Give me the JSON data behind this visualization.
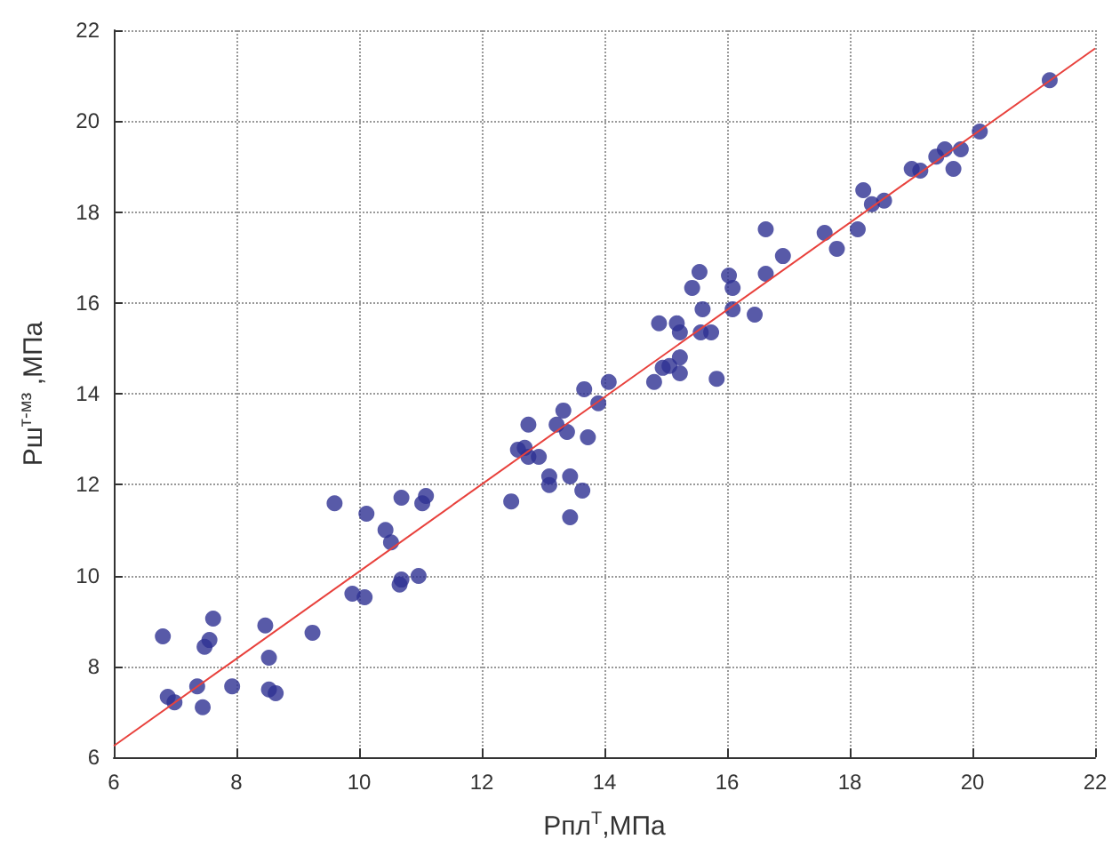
{
  "chart_data": {
    "type": "scatter",
    "xlabel": "Рпл$^{Т}$,МПа",
    "ylabel": "Рш$^{т-мз}$ ,МПа",
    "xlim": [
      6,
      22
    ],
    "xticks": [
      6,
      8,
      10,
      12,
      14,
      16,
      18,
      20,
      22
    ],
    "ylim": [
      6,
      22
    ],
    "yticks": [
      6,
      8,
      10,
      12,
      14,
      16,
      18,
      20,
      22
    ],
    "grid": true,
    "series": [
      {
        "marker": "circle",
        "color": "#2e3192",
        "x": [
          6.8,
          6.88,
          6.99,
          7.36,
          7.45,
          7.48,
          7.56,
          7.62,
          7.93,
          8.47,
          8.53,
          8.53,
          8.64,
          9.24,
          9.6,
          9.89,
          10.09,
          10.12,
          10.43,
          10.52,
          10.66,
          10.69,
          10.69,
          10.97,
          11.03,
          11.09,
          12.48,
          12.59,
          12.7,
          12.76,
          12.76,
          12.93,
          13.1,
          13.1,
          13.22,
          13.33,
          13.39,
          13.44,
          13.64,
          13.44,
          13.73,
          13.67,
          13.9,
          14.07,
          14.81,
          14.95,
          15.06,
          15.23,
          15.23,
          14.89,
          15.18,
          15.23,
          15.57,
          15.74,
          15.83,
          15.6,
          15.43,
          15.55,
          16.03,
          16.09,
          16.09,
          16.45,
          16.63,
          16.63,
          16.91,
          17.59,
          17.79,
          18.13,
          18.22,
          18.36,
          18.56,
          19.01,
          19.15,
          19.41,
          19.55,
          19.69,
          19.81,
          20.12,
          21.26
        ],
        "values": [
          8.66,
          7.33,
          7.21,
          7.56,
          7.1,
          8.43,
          8.58,
          9.05,
          7.56,
          8.9,
          8.19,
          7.49,
          7.41,
          8.74,
          11.59,
          9.6,
          9.52,
          11.36,
          11.0,
          10.73,
          9.8,
          9.91,
          11.71,
          9.99,
          11.59,
          11.75,
          11.63,
          12.77,
          12.81,
          13.32,
          12.61,
          12.61,
          12.18,
          11.99,
          13.32,
          13.63,
          13.16,
          12.18,
          11.87,
          11.28,
          13.04,
          14.1,
          13.79,
          14.26,
          14.26,
          14.57,
          14.61,
          14.45,
          14.8,
          15.55,
          15.55,
          15.35,
          15.35,
          15.35,
          14.33,
          15.86,
          16.33,
          16.68,
          16.6,
          16.33,
          15.86,
          15.74,
          16.64,
          17.62,
          17.03,
          17.54,
          17.19,
          17.62,
          18.48,
          18.17,
          18.25,
          18.95,
          18.91,
          19.22,
          19.38,
          18.95,
          19.38,
          19.77,
          20.9
        ]
      },
      {
        "type": "line",
        "color": "#e8413c",
        "x": [
          6,
          22
        ],
        "values": [
          6.25,
          21.6
        ]
      }
    ]
  }
}
